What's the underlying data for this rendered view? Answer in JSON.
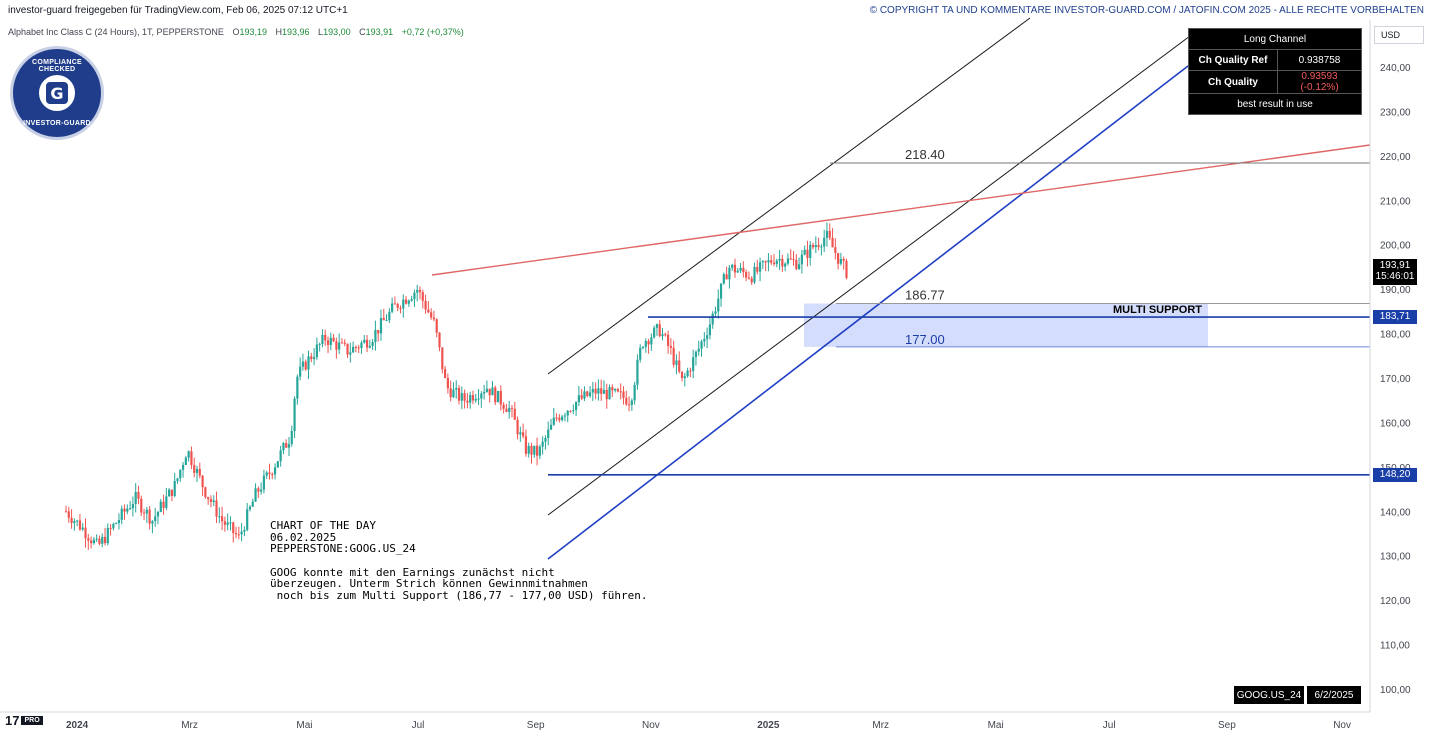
{
  "header": {
    "publisher": "investor-guard freigegeben für TradingView.com, Feb 06, 2025 07:12 UTC+1",
    "copyright": "© COPYRIGHT TA UND KOMMENTARE INVESTOR-GUARD.COM / JATOFIN.COM 2025 - ALLE RECHTE VORBEHALTEN"
  },
  "symbol": {
    "name": "Alphabet Inc Class C (24 Hours), 1T, PEPPERSTONE",
    "open_label": "O",
    "open": "193,19",
    "high_label": "H",
    "high": "193,96",
    "low_label": "L",
    "low": "193,00",
    "close_label": "C",
    "close": "193,91",
    "change": "+0,72 (+0,37%)"
  },
  "badge": {
    "top_text": "COMPLIANCE CHECKED",
    "bottom_text": "INVESTOR-GUARD",
    "letter": "G"
  },
  "info_table": {
    "title": "Long Channel",
    "rows": [
      {
        "label": "Ch Quality Ref",
        "value": "0.938758"
      },
      {
        "label": "Ch Quality",
        "value": "0.93593 (-0.12%)"
      }
    ],
    "footer": "best result in use"
  },
  "currency_button": "USD",
  "note": {
    "title": "CHART OF THE DAY",
    "date": "06.02.2025",
    "ticker": "PEPPERSTONE:GOOG.US_24",
    "lines": [
      "GOOG konnte mit den Earnings zunächst nicht",
      "überzeugen. Unterm Strich können Gewinnmitnahmen",
      " noch bis zum Multi Support (186,77 - 177,00 USD) führen."
    ]
  },
  "bottom_tags": {
    "symbol": "GOOG.US_24",
    "date": "6/2/2025"
  },
  "branding": {
    "logo": "17",
    "pro": "PRO"
  },
  "price_boxes": {
    "last_price": "193,91",
    "countdown": "15:46:01",
    "support_1": "183,71",
    "support_2": "148,20"
  },
  "colors": {
    "up": "#26a69a",
    "down": "#ef5350",
    "channel": "#1a1a1a",
    "trend_blue": "#1f3fc4",
    "resistance": "#e06666",
    "support_zone": "#c7d2fb",
    "horizontal": "#1a3ea8"
  },
  "chart_data": {
    "type": "candlestick",
    "title": "Alphabet Inc Class C (24 Hours), 1T, PEPPERSTONE",
    "ylim": [
      95,
      250
    ],
    "y_ticks": [
      100,
      110,
      120,
      130,
      140,
      150,
      160,
      170,
      180,
      190,
      200,
      210,
      220,
      230,
      240
    ],
    "x_tick_labels": [
      "2024",
      "Mrz",
      "Mai",
      "Jul",
      "Sep",
      "Nov",
      "2025",
      "Mrz",
      "Mai",
      "Jul",
      "Sep",
      "Nov"
    ],
    "x_tick_months": [
      0,
      2,
      4,
      6,
      8,
      10,
      12,
      14,
      16,
      18,
      20,
      22
    ],
    "x_range_months": [
      0,
      23.2
    ],
    "price_path": [
      [
        0.0,
        140
      ],
      [
        0.3,
        136
      ],
      [
        0.55,
        132
      ],
      [
        0.9,
        138
      ],
      [
        1.2,
        143
      ],
      [
        1.5,
        138
      ],
      [
        1.9,
        146
      ],
      [
        2.1,
        154
      ],
      [
        2.4,
        145
      ],
      [
        2.7,
        138
      ],
      [
        3.0,
        134
      ],
      [
        3.3,
        144
      ],
      [
        3.6,
        150
      ],
      [
        3.9,
        157
      ],
      [
        4.0,
        170
      ],
      [
        4.2,
        174
      ],
      [
        4.5,
        179
      ],
      [
        4.9,
        176
      ],
      [
        5.3,
        179
      ],
      [
        5.7,
        186
      ],
      [
        6.1,
        190
      ],
      [
        6.4,
        182
      ],
      [
        6.6,
        168
      ],
      [
        6.9,
        165
      ],
      [
        7.3,
        168
      ],
      [
        7.7,
        163
      ],
      [
        7.98,
        154
      ],
      [
        8.2,
        153
      ],
      [
        8.5,
        161
      ],
      [
        8.9,
        165
      ],
      [
        9.2,
        167
      ],
      [
        9.6,
        166
      ],
      [
        9.8,
        165
      ],
      [
        10.0,
        178
      ],
      [
        10.3,
        181
      ],
      [
        10.5,
        176
      ],
      [
        10.7,
        169
      ],
      [
        11.0,
        177
      ],
      [
        11.2,
        183
      ],
      [
        11.5,
        195
      ],
      [
        11.9,
        193
      ],
      [
        12.3,
        197
      ],
      [
        12.7,
        196
      ],
      [
        13.0,
        200
      ],
      [
        13.2,
        202
      ],
      [
        13.45,
        196
      ],
      [
        13.55,
        193.9
      ]
    ],
    "annotations": [
      {
        "label": "218.40",
        "value": 218.4
      },
      {
        "label": "186.77",
        "value": 186.77
      },
      {
        "label": "177.00",
        "value": 177.0
      },
      {
        "label": "MULTI SUPPORT",
        "zone": [
          177.0,
          186.77
        ]
      }
    ],
    "horizontal_levels": [
      183.71,
      148.2
    ],
    "last_price": 193.91
  }
}
